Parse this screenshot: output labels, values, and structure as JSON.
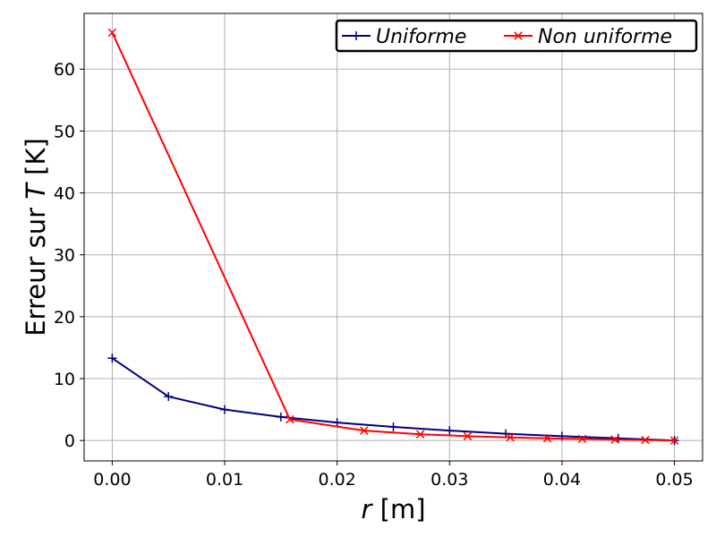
{
  "chart_data": {
    "type": "line",
    "xlabel": {
      "var": "r",
      "unit": " [m]"
    },
    "ylabel": {
      "text": "Erreur sur ",
      "var": "T",
      "unit": " [K]"
    },
    "xlim": [
      -0.0025,
      0.0525
    ],
    "ylim": [
      -3.3,
      69.0
    ],
    "xticks": [
      0.0,
      0.01,
      0.02,
      0.03,
      0.04,
      0.05
    ],
    "xtick_labels": [
      "0.00",
      "0.01",
      "0.02",
      "0.03",
      "0.04",
      "0.05"
    ],
    "yticks": [
      0,
      10,
      20,
      30,
      40,
      50,
      60
    ],
    "ytick_labels": [
      "0",
      "10",
      "20",
      "30",
      "40",
      "50",
      "60"
    ],
    "grid": true,
    "legend": {
      "placement": "top-right",
      "columns": 2
    },
    "series": [
      {
        "name": "Uniforme",
        "color": "#000080",
        "marker": "plus",
        "x": [
          0.0,
          0.005,
          0.01,
          0.015,
          0.02,
          0.025,
          0.03,
          0.035,
          0.04,
          0.045,
          0.05
        ],
        "y": [
          13.3,
          7.1,
          5.0,
          3.8,
          2.9,
          2.2,
          1.6,
          1.1,
          0.7,
          0.35,
          0.0
        ]
      },
      {
        "name": "Non uniforme",
        "color": "#ff0000",
        "marker": "x",
        "x": [
          0.0,
          0.0158,
          0.0224,
          0.0274,
          0.0316,
          0.0354,
          0.0387,
          0.0418,
          0.0447,
          0.0474,
          0.05
        ],
        "y": [
          65.9,
          3.4,
          1.6,
          1.0,
          0.7,
          0.5,
          0.35,
          0.25,
          0.15,
          0.08,
          0.0
        ]
      }
    ]
  }
}
